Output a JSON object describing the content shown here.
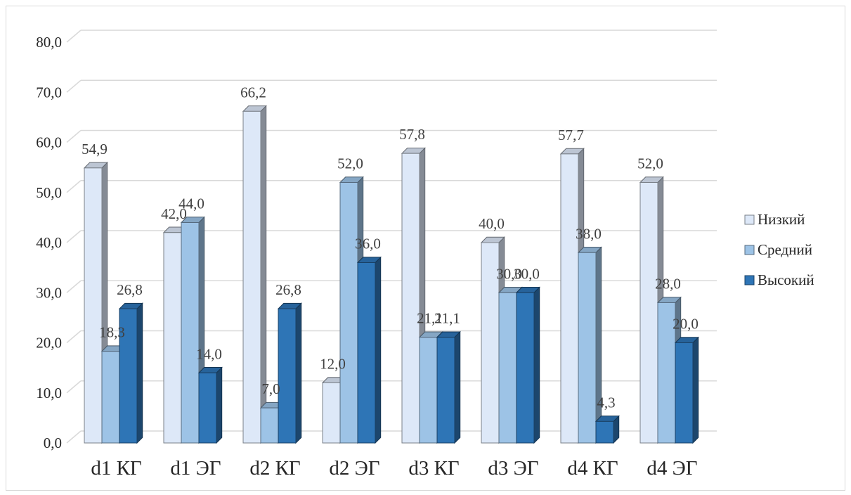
{
  "chart_data": {
    "type": "bar",
    "categories": [
      "d1 КГ",
      "d1 ЭГ",
      "d2 КГ",
      "d2 ЭГ",
      "d3 КГ",
      "d3 ЭГ",
      "d4 КГ",
      "d4 ЭГ"
    ],
    "series": [
      {
        "name": "Низкий",
        "values": [
          54.9,
          42.0,
          66.2,
          12.0,
          57.8,
          40.0,
          57.7,
          52.0
        ],
        "labels": [
          "54,9",
          "42,0",
          "66,2",
          "12,0",
          "57,8",
          "40,0",
          "57,7",
          "52,0"
        ],
        "color": "#dde8f8"
      },
      {
        "name": "Средний",
        "values": [
          18.3,
          44.0,
          7.0,
          52.0,
          21.1,
          30.0,
          38.0,
          28.0
        ],
        "labels": [
          "18,3",
          "44,0",
          "7,0",
          "52,0",
          "21,1",
          "30,0",
          "38,0",
          "28,0"
        ],
        "color": "#9dc3e6"
      },
      {
        "name": "Высокий",
        "values": [
          26.8,
          14.0,
          26.8,
          36.0,
          21.1,
          30.0,
          4.3,
          20.0
        ],
        "labels": [
          "26,8",
          "14,0",
          "26,8",
          "36,0",
          "21,1",
          "30,0",
          "4,3",
          "20,0"
        ],
        "color": "#2e75b6"
      }
    ],
    "yticks": [
      0,
      10,
      20,
      30,
      40,
      50,
      60,
      70,
      80
    ],
    "ytick_labels": [
      "0,0",
      "10,0",
      "20,0",
      "30,0",
      "40,0",
      "50,0",
      "60,0",
      "70,0",
      "80,0"
    ],
    "ylim": [
      0,
      80
    ],
    "title": "",
    "xlabel": "",
    "ylabel": "",
    "grid": true,
    "legend": "right",
    "style": "3d-clustered-column"
  }
}
